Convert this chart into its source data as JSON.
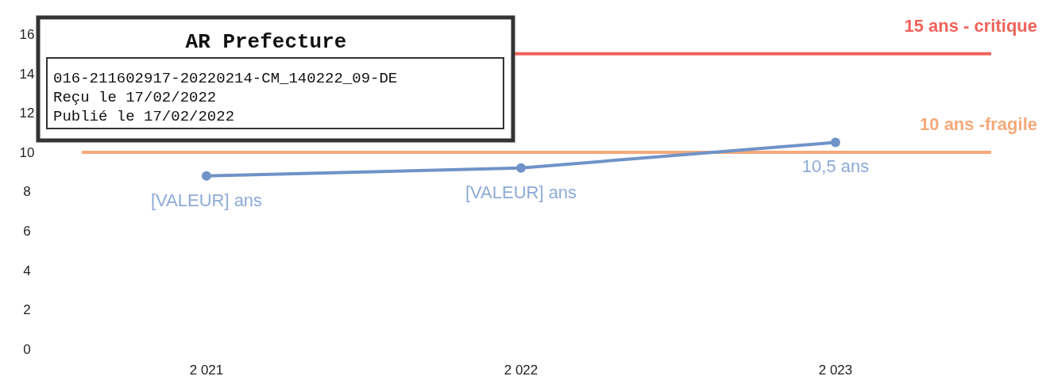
{
  "chart_data": {
    "type": "line",
    "categories": [
      "2 021",
      "2 022",
      "2 023"
    ],
    "series": [
      {
        "color": "#6f93c8",
        "values": [
          8.8,
          9.2,
          10.5
        ],
        "value_labels": [
          "[VALEUR] ans",
          "[VALEUR] ans",
          "10,5 ans"
        ]
      }
    ],
    "ylim": [
      0,
      16
    ],
    "yticks": [
      0,
      2,
      4,
      6,
      8,
      10,
      12,
      14,
      16
    ],
    "marker": "circle",
    "grid": false,
    "ref_lines": [
      {
        "axis": "y",
        "value": 15,
        "label": "15 ans - critique",
        "color": "#f0625a"
      },
      {
        "axis": "y",
        "value": 10,
        "label": "10 ans -fragile",
        "color": "#f5a97a"
      }
    ],
    "annotations": [
      "AR Prefecture",
      "016-211602917-20220214-CM_140222_09-DE",
      "Reçu le 17/02/2022",
      "Publié le 17/02/2022"
    ]
  }
}
